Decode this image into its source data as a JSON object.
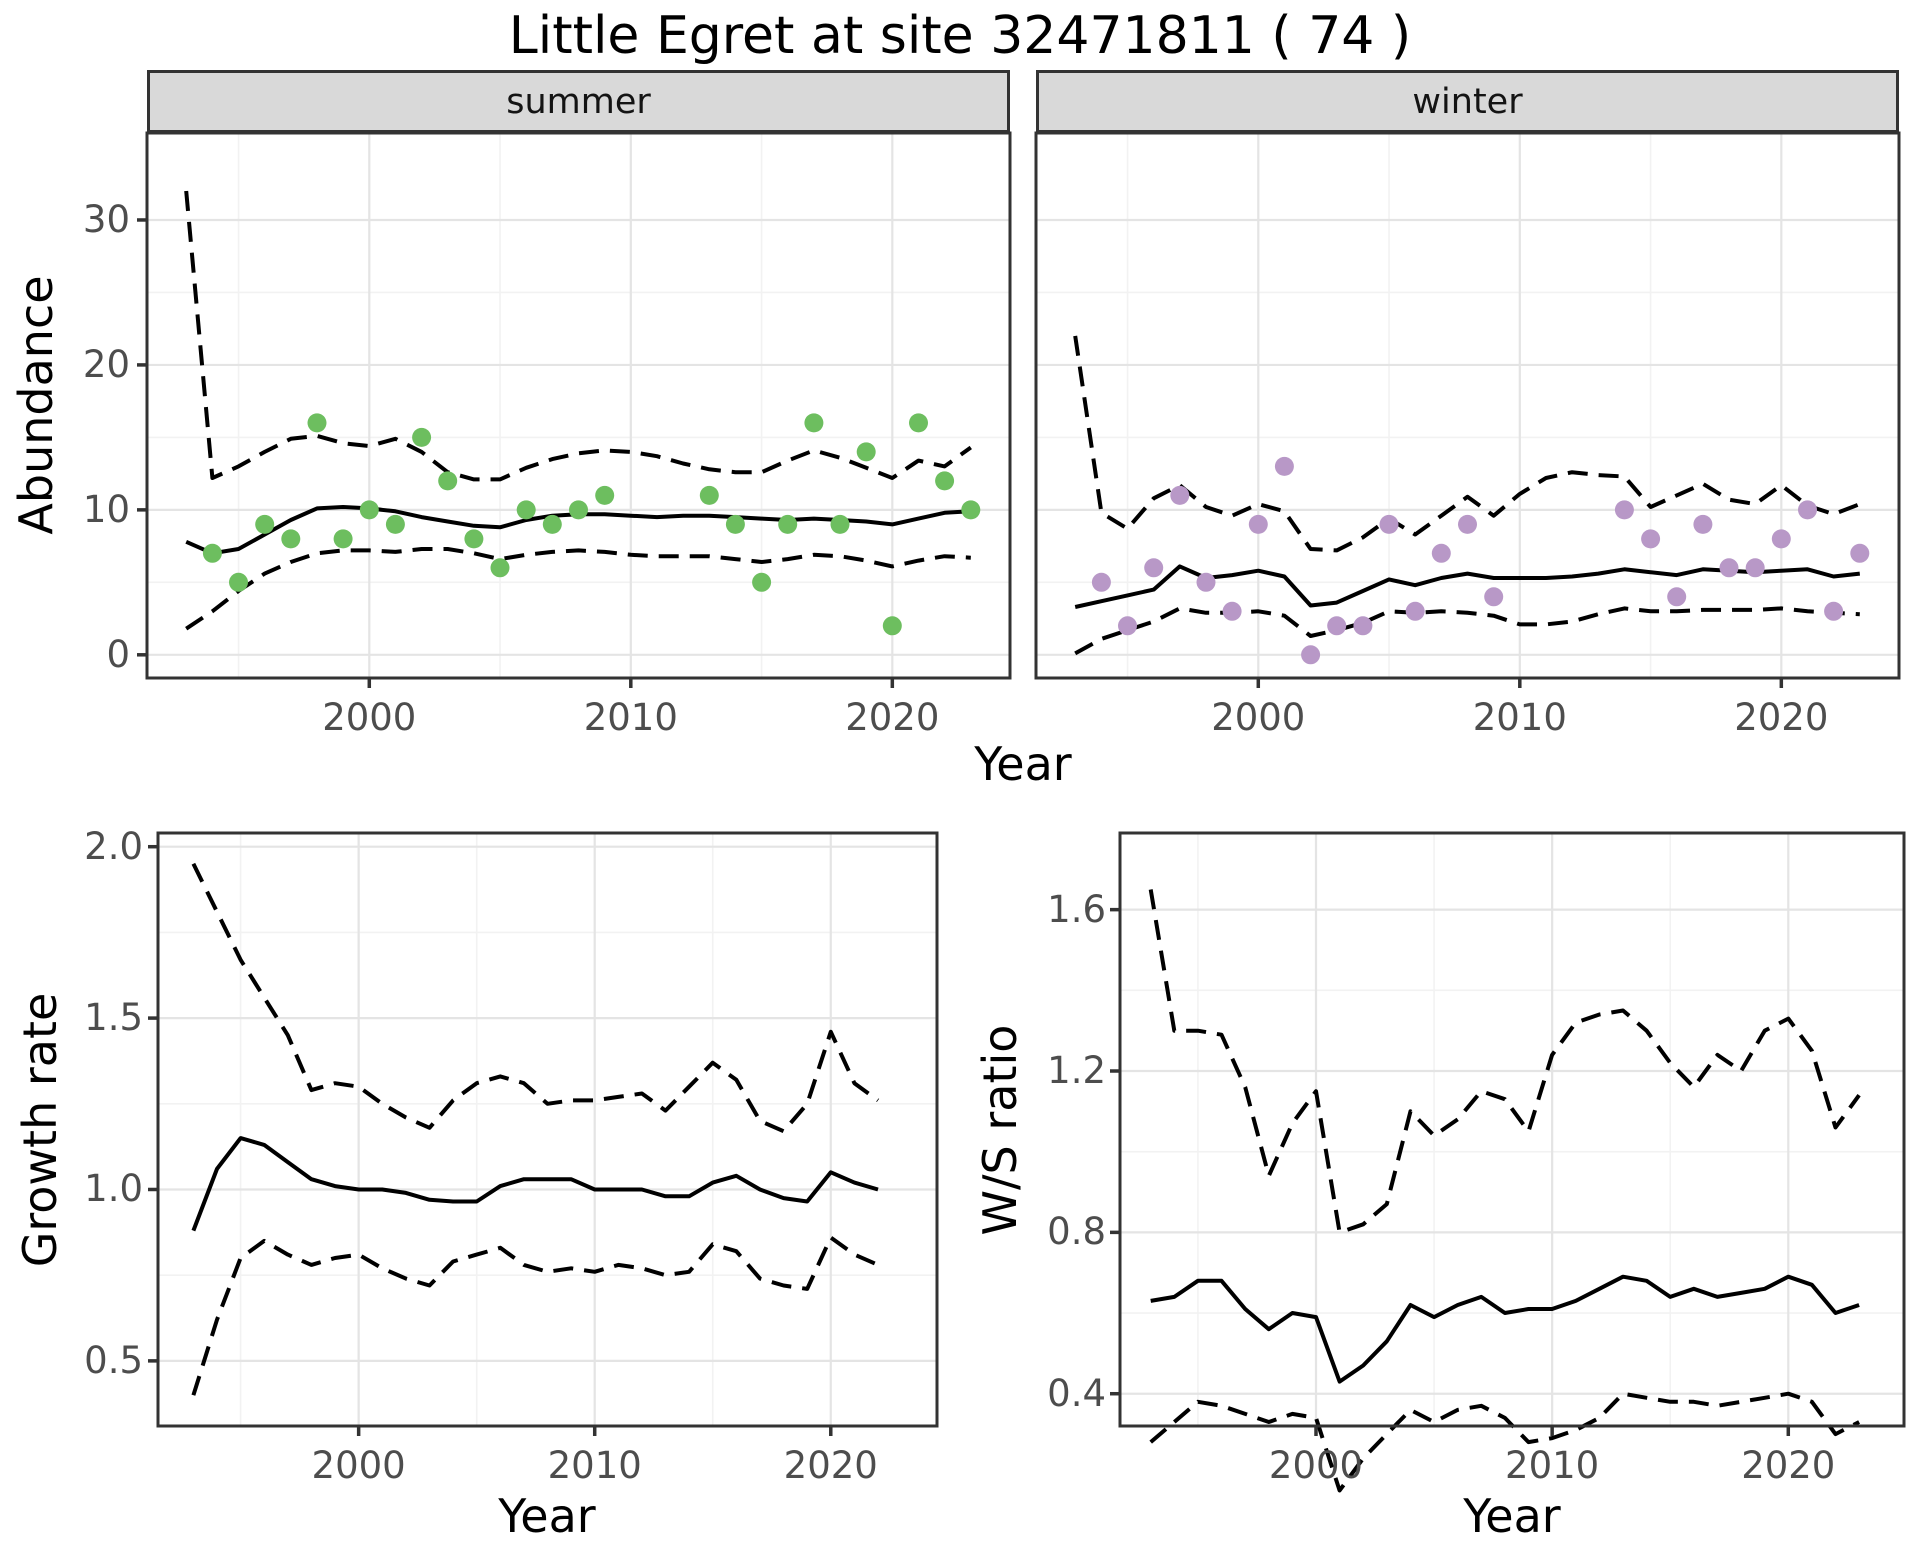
{
  "title": "Little Egret at site 32471811 ( 74 )",
  "colors": {
    "summer_point": "#6dbe5f",
    "winter_point": "#b898c7",
    "line": "#000000",
    "strip_background": "#d9d9d9",
    "strip_border": "#333333",
    "panel_border": "#333333",
    "grid_major": "#e4e4e4",
    "grid_minor": "#f2f2f2",
    "tick_label": "#4d4d4d",
    "axis_tick": "#333333"
  },
  "chart_data": [
    {
      "id": "abundance-summer",
      "type": "scatter",
      "facet_label": "summer",
      "xlabel": "Year",
      "ylabel": "Abundance",
      "xticks": [
        2000,
        2010,
        2020
      ],
      "xtick_labels": [
        "2000",
        "2010",
        "2020"
      ],
      "yticks": [
        0,
        10,
        20,
        30
      ],
      "ytick_labels": [
        "0",
        "10",
        "20",
        "30"
      ],
      "xlim": [
        1991.5,
        2024.5
      ],
      "ylim": [
        -1.6,
        36.0
      ],
      "grid": true,
      "points": [
        [
          1994,
          7
        ],
        [
          1995,
          5
        ],
        [
          1996,
          9
        ],
        [
          1997,
          8
        ],
        [
          1998,
          16
        ],
        [
          1999,
          8
        ],
        [
          2000,
          10
        ],
        [
          2001,
          9
        ],
        [
          2002,
          15
        ],
        [
          2003,
          12
        ],
        [
          2004,
          8
        ],
        [
          2005,
          6
        ],
        [
          2006,
          10
        ],
        [
          2007,
          9
        ],
        [
          2008,
          10
        ],
        [
          2009,
          11
        ],
        [
          2013,
          11
        ],
        [
          2014,
          9
        ],
        [
          2015,
          5
        ],
        [
          2016,
          9
        ],
        [
          2017,
          16
        ],
        [
          2018,
          9
        ],
        [
          2019,
          14
        ],
        [
          2020,
          2
        ],
        [
          2021,
          16
        ],
        [
          2022,
          12
        ],
        [
          2023,
          10
        ]
      ],
      "series": [
        {
          "name": "smoothed-index",
          "style": "solid",
          "start_year": 1993,
          "values": [
            7.8,
            7.0,
            7.3,
            8.3,
            9.3,
            10.1,
            10.2,
            10.1,
            9.9,
            9.5,
            9.2,
            8.9,
            8.8,
            9.3,
            9.6,
            9.7,
            9.7,
            9.6,
            9.5,
            9.6,
            9.6,
            9.5,
            9.4,
            9.3,
            9.4,
            9.3,
            9.2,
            9.0,
            9.4,
            9.8,
            9.9
          ]
        },
        {
          "name": "upper-95ci",
          "style": "dashed",
          "start_year": 1993,
          "values": [
            32.0,
            12.2,
            13.0,
            14.0,
            14.9,
            15.1,
            14.6,
            14.4,
            14.9,
            14.0,
            12.6,
            12.1,
            12.1,
            12.9,
            13.5,
            13.9,
            14.1,
            14.0,
            13.7,
            13.2,
            12.8,
            12.6,
            12.6,
            13.4,
            14.1,
            13.6,
            12.9,
            12.2,
            13.4,
            13.0,
            14.3
          ]
        },
        {
          "name": "lower-95ci",
          "style": "dashed",
          "start_year": 1993,
          "values": [
            1.8,
            3.0,
            4.4,
            5.6,
            6.4,
            7.0,
            7.2,
            7.2,
            7.1,
            7.3,
            7.3,
            7.0,
            6.6,
            6.9,
            7.1,
            7.2,
            7.1,
            6.9,
            6.8,
            6.8,
            6.8,
            6.6,
            6.4,
            6.6,
            6.9,
            6.8,
            6.5,
            6.1,
            6.5,
            6.8,
            6.7
          ]
        }
      ]
    },
    {
      "id": "abundance-winter",
      "type": "scatter",
      "facet_label": "winter",
      "xlabel": "Year",
      "ylabel": "Abundance",
      "xticks": [
        2000,
        2010,
        2020
      ],
      "xtick_labels": [
        "2000",
        "2010",
        "2020"
      ],
      "yticks": [
        0,
        10,
        20,
        30
      ],
      "ytick_labels": [
        "0",
        "10",
        "20",
        "30"
      ],
      "xlim": [
        1991.5,
        2024.5
      ],
      "ylim": [
        -1.6,
        36.0
      ],
      "grid": true,
      "points": [
        [
          1994,
          5
        ],
        [
          1995,
          2
        ],
        [
          1996,
          6
        ],
        [
          1997,
          11
        ],
        [
          1998,
          5
        ],
        [
          1999,
          3
        ],
        [
          2000,
          9
        ],
        [
          2001,
          13
        ],
        [
          2002,
          0
        ],
        [
          2003,
          2
        ],
        [
          2004,
          2
        ],
        [
          2005,
          9
        ],
        [
          2006,
          3
        ],
        [
          2007,
          7
        ],
        [
          2008,
          9
        ],
        [
          2009,
          4
        ],
        [
          2014,
          10
        ],
        [
          2015,
          8
        ],
        [
          2016,
          4
        ],
        [
          2017,
          9
        ],
        [
          2018,
          6
        ],
        [
          2019,
          6
        ],
        [
          2020,
          8
        ],
        [
          2021,
          10
        ],
        [
          2022,
          3
        ],
        [
          2023,
          7
        ]
      ],
      "series": [
        {
          "name": "smoothed-index",
          "style": "solid",
          "start_year": 1993,
          "values": [
            3.3,
            3.7,
            4.1,
            4.5,
            6.1,
            5.3,
            5.5,
            5.8,
            5.4,
            3.4,
            3.6,
            4.4,
            5.2,
            4.8,
            5.3,
            5.6,
            5.3,
            5.3,
            5.3,
            5.4,
            5.6,
            5.9,
            5.7,
            5.5,
            5.9,
            5.8,
            5.7,
            5.8,
            5.9,
            5.4,
            5.6
          ]
        },
        {
          "name": "upper-95ci",
          "style": "dashed",
          "start_year": 1993,
          "values": [
            22.0,
            9.8,
            8.7,
            10.8,
            11.7,
            10.2,
            9.6,
            10.4,
            9.9,
            7.3,
            7.2,
            8.1,
            9.4,
            8.3,
            9.6,
            10.9,
            9.6,
            11.1,
            12.2,
            12.6,
            12.4,
            12.3,
            10.2,
            11.0,
            11.8,
            10.7,
            10.4,
            11.7,
            10.3,
            9.7,
            10.4
          ]
        },
        {
          "name": "lower-95ci",
          "style": "dashed",
          "start_year": 1993,
          "values": [
            0.1,
            1.1,
            1.7,
            2.3,
            3.2,
            2.9,
            2.9,
            3.0,
            2.7,
            1.3,
            1.7,
            2.2,
            3.0,
            2.9,
            3.0,
            2.9,
            2.7,
            2.1,
            2.1,
            2.3,
            2.8,
            3.2,
            3.0,
            3.0,
            3.1,
            3.1,
            3.1,
            3.2,
            3.0,
            2.9,
            2.8
          ]
        }
      ]
    },
    {
      "id": "growth-rate",
      "type": "line",
      "facet_label": "",
      "xlabel": "Year",
      "ylabel": "Growth rate",
      "xticks": [
        2000,
        2010,
        2020
      ],
      "xtick_labels": [
        "2000",
        "2010",
        "2020"
      ],
      "yticks": [
        0.5,
        1.0,
        1.5,
        2.0
      ],
      "ytick_labels": [
        "0.5",
        "1.0",
        "1.5",
        "2.0"
      ],
      "xlim": [
        1991.5,
        2024.5
      ],
      "ylim": [
        0.31,
        2.04
      ],
      "grid": true,
      "points": [],
      "series": [
        {
          "name": "growth-rate",
          "style": "solid",
          "start_year": 1993,
          "values": [
            0.88,
            1.06,
            1.15,
            1.13,
            1.08,
            1.03,
            1.01,
            1.0,
            1.0,
            0.99,
            0.97,
            0.965,
            0.965,
            1.01,
            1.03,
            1.03,
            1.03,
            1.0,
            1.0,
            1.0,
            0.98,
            0.98,
            1.02,
            1.04,
            1.0,
            0.975,
            0.965,
            1.05,
            1.02,
            1.0
          ]
        },
        {
          "name": "upper-95ci",
          "style": "dashed",
          "start_year": 1993,
          "values": [
            1.95,
            1.81,
            1.67,
            1.56,
            1.45,
            1.29,
            1.31,
            1.3,
            1.25,
            1.21,
            1.18,
            1.26,
            1.31,
            1.33,
            1.31,
            1.25,
            1.26,
            1.26,
            1.27,
            1.28,
            1.23,
            1.3,
            1.37,
            1.32,
            1.2,
            1.17,
            1.25,
            1.46,
            1.31,
            1.26
          ]
        },
        {
          "name": "lower-95ci",
          "style": "dashed",
          "start_year": 1993,
          "values": [
            0.4,
            0.62,
            0.8,
            0.85,
            0.81,
            0.78,
            0.8,
            0.81,
            0.77,
            0.74,
            0.72,
            0.79,
            0.81,
            0.83,
            0.78,
            0.76,
            0.77,
            0.76,
            0.78,
            0.77,
            0.75,
            0.76,
            0.84,
            0.82,
            0.74,
            0.72,
            0.71,
            0.86,
            0.81,
            0.78
          ]
        }
      ]
    },
    {
      "id": "ws-ratio",
      "type": "line",
      "facet_label": "",
      "xlabel": "Year",
      "ylabel": "W/S ratio",
      "xticks": [
        2000,
        2010,
        2020
      ],
      "xtick_labels": [
        "2000",
        "2010",
        "2020"
      ],
      "yticks": [
        0.4,
        0.8,
        1.2,
        1.6
      ],
      "ytick_labels": [
        "0.4",
        "0.8",
        "1.2",
        "1.6"
      ],
      "xlim": [
        1991.7,
        2024.9
      ],
      "ylim": [
        0.32,
        1.79
      ],
      "grid": true,
      "points": [],
      "series": [
        {
          "name": "ws-ratio",
          "style": "solid",
          "start_year": 1993,
          "values": [
            0.63,
            0.64,
            0.68,
            0.68,
            0.61,
            0.56,
            0.6,
            0.59,
            0.43,
            0.47,
            0.53,
            0.62,
            0.59,
            0.62,
            0.64,
            0.6,
            0.61,
            0.61,
            0.63,
            0.66,
            0.69,
            0.68,
            0.64,
            0.66,
            0.64,
            0.65,
            0.66,
            0.69,
            0.67,
            0.6,
            0.62
          ]
        },
        {
          "name": "upper-95ci",
          "style": "dashed",
          "start_year": 1993,
          "values": [
            1.65,
            1.3,
            1.3,
            1.29,
            1.16,
            0.94,
            1.07,
            1.15,
            0.8,
            0.82,
            0.87,
            1.1,
            1.04,
            1.08,
            1.15,
            1.13,
            1.05,
            1.24,
            1.32,
            1.34,
            1.35,
            1.3,
            1.22,
            1.16,
            1.24,
            1.2,
            1.3,
            1.33,
            1.25,
            1.06,
            1.14
          ]
        },
        {
          "name": "lower-95ci",
          "style": "dashed",
          "start_year": 1993,
          "values": [
            0.28,
            0.33,
            0.38,
            0.37,
            0.35,
            0.33,
            0.35,
            0.34,
            0.16,
            0.24,
            0.3,
            0.36,
            0.33,
            0.36,
            0.37,
            0.34,
            0.28,
            0.29,
            0.31,
            0.34,
            0.4,
            0.39,
            0.38,
            0.38,
            0.37,
            0.38,
            0.39,
            0.4,
            0.38,
            0.3,
            0.33
          ]
        }
      ]
    }
  ]
}
